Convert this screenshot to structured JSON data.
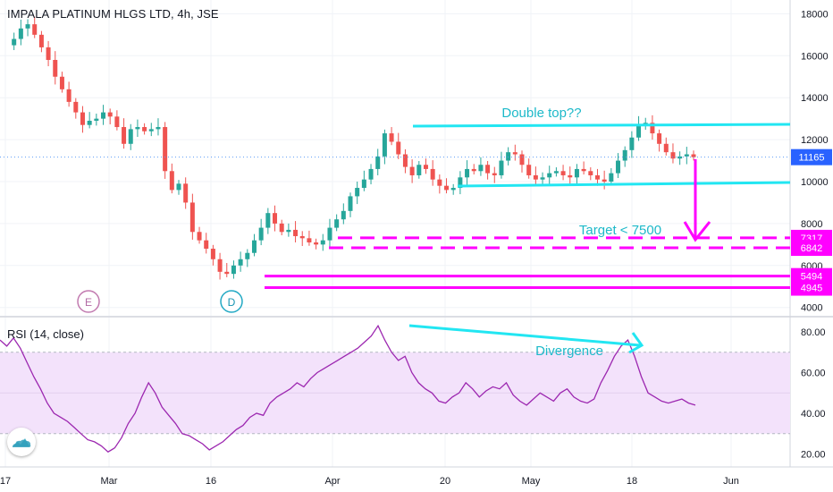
{
  "chart_data": [
    {
      "type": "candlestick",
      "title": "IMPALA PLATINUM HLGS LTD, 4h, JSE",
      "y_axis_ticks": [
        "18000",
        "16000",
        "14000",
        "12000",
        "10000",
        "8000",
        "6000",
        "4000"
      ],
      "x_axis_ticks": [
        "17",
        "Mar",
        "16",
        "Apr",
        "20",
        "May",
        "18",
        "Jun"
      ],
      "ylim": [
        3800,
        18600
      ],
      "last_price": "11165",
      "price_labels": [
        {
          "text": "7317",
          "value": 7317
        },
        {
          "text": "6842",
          "value": 6842
        },
        {
          "text": "5494",
          "value": 5494
        },
        {
          "text": "4945",
          "value": 4945
        }
      ],
      "markers": [
        {
          "letter": "E"
        },
        {
          "letter": "D"
        }
      ],
      "annotations": [
        {
          "text": "Double top??"
        },
        {
          "text": "Target < 7500"
        }
      ],
      "lines": [
        {
          "kind": "resistance",
          "color": "#22e6f2",
          "from": 12600,
          "to": 12600
        },
        {
          "kind": "support",
          "color": "#22e6f2",
          "from": 9600,
          "to": 9900
        },
        {
          "kind": "dashed",
          "color": "#ff00ff",
          "value": 7317
        },
        {
          "kind": "dashed",
          "color": "#ff00ff",
          "value": 6842
        },
        {
          "kind": "solid",
          "color": "#ff00ff",
          "value": 5494
        },
        {
          "kind": "solid",
          "color": "#ff00ff",
          "value": 4945
        }
      ],
      "colors": {
        "up": "#26a69a",
        "down": "#ef5350",
        "cyan": "#22e6f2",
        "magenta": "#ff00ff"
      },
      "price_path": [
        16500,
        16800,
        17300,
        17500,
        17000,
        16400,
        15800,
        15000,
        14400,
        13800,
        13300,
        12700,
        12900,
        13000,
        13300,
        13100,
        12600,
        11800,
        12500,
        12600,
        12400,
        12500,
        12600,
        10500,
        9600,
        9900,
        9000,
        7600,
        7200,
        6800,
        6300,
        5700,
        5600,
        6000,
        6300,
        6600,
        7200,
        7800,
        8500,
        8000,
        7600,
        7700,
        7400,
        7300,
        7100,
        7000,
        7200,
        7800,
        8200,
        8600,
        9300,
        9700,
        10100,
        10600,
        11200,
        12300,
        11900,
        11300,
        10700,
        10300,
        10800,
        10600,
        10100,
        9800,
        9600,
        9700,
        10200,
        10600,
        10500,
        10800,
        10400,
        10300,
        11000,
        11400,
        11300,
        10800,
        10300,
        10100,
        10200,
        10400,
        10500,
        10300,
        10200,
        10600,
        10500,
        10300,
        10100,
        10000,
        10400,
        11000,
        11500,
        12100,
        12700,
        12800,
        12300,
        11800,
        11400,
        11100,
        11200,
        11300,
        11165
      ]
    },
    {
      "type": "line",
      "title": "RSI (14, close)",
      "y_axis_ticks": [
        "80.00",
        "60.00",
        "40.00",
        "20.00"
      ],
      "ylim": [
        16,
        86
      ],
      "band": [
        30,
        70
      ],
      "annotations": [
        {
          "text": "Divergence"
        }
      ],
      "values": [
        76,
        73,
        77,
        72,
        65,
        58,
        52,
        45,
        40,
        38,
        36,
        33,
        30,
        27,
        26,
        24,
        21,
        23,
        28,
        35,
        40,
        48,
        55,
        50,
        43,
        39,
        35,
        30,
        29,
        27,
        25,
        22,
        24,
        26,
        29,
        32,
        34,
        38,
        40,
        39,
        45,
        48,
        50,
        52,
        55,
        53,
        57,
        60,
        62,
        64,
        66,
        68,
        70,
        72,
        75,
        78,
        83,
        76,
        70,
        66,
        68,
        60,
        55,
        52,
        50,
        46,
        45,
        48,
        50,
        55,
        52,
        48,
        51,
        53,
        52,
        55,
        49,
        46,
        44,
        47,
        50,
        48,
        46,
        50,
        52,
        48,
        46,
        45,
        47,
        55,
        61,
        68,
        73,
        76,
        68,
        58,
        50,
        48,
        46,
        45,
        46,
        47,
        45,
        44
      ],
      "colors": {
        "line": "#9c27b0",
        "band": "#f3e2fb"
      }
    }
  ]
}
